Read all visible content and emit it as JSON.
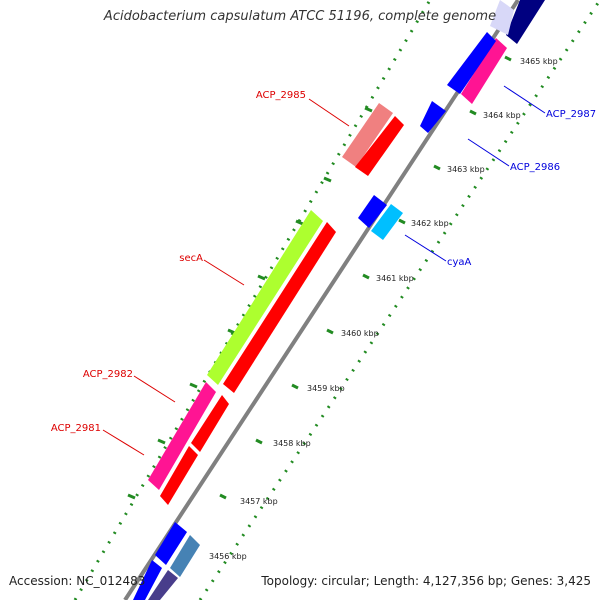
{
  "title": "Acidobacterium capsulatum ATCC 51196, complete genome",
  "footer": {
    "accession": "Accession: NC_012483",
    "summary": "Topology: circular; Length: 4,127,356 bp; Genes: 3,425"
  },
  "colors": {
    "backbone": "#808080",
    "tick_dots": "#228B22",
    "forward_label": "#DD0000",
    "reverse_label": "#0000DD"
  },
  "scale_ticks": [
    {
      "label": "3456 kbp"
    },
    {
      "label": "3457 kbp"
    },
    {
      "label": "3458 kbp"
    },
    {
      "label": "3459 kbp"
    },
    {
      "label": "3460 kbp"
    },
    {
      "label": "3461 kbp"
    },
    {
      "label": "3462 kbp"
    },
    {
      "label": "3463 kbp"
    },
    {
      "label": "3464 kbp"
    },
    {
      "label": "3465 kbp"
    }
  ],
  "gene_labels": {
    "acp_2985": "ACP_2985",
    "seca": "secA",
    "acp_2982": "ACP_2982",
    "acp_2981": "ACP_2981",
    "acp_2987": "ACP_2987",
    "acp_2986": "ACP_2986",
    "cyaa": "cyaA"
  },
  "genes": [
    {
      "name": "ACP_2985",
      "strand": "forward",
      "color": "#F08080",
      "cds_color": "#FF0000"
    },
    {
      "name": "secA",
      "strand": "forward",
      "color": "#ADFF2F",
      "cds_color": "#FF0000"
    },
    {
      "name": "ACP_2982",
      "strand": "forward",
      "color": "#FF1493",
      "cds_color": "#FF0000"
    },
    {
      "name": "ACP_2981",
      "strand": "forward",
      "color": "#FF1493",
      "cds_color": "#FF0000"
    },
    {
      "name": "ACP_2987",
      "strand": "reverse",
      "color": "#FF1493",
      "cds_color": "#0000FF"
    },
    {
      "name": "ACP_2986",
      "strand": "reverse",
      "color": "#0000FF",
      "cds_color": "#0000FF"
    },
    {
      "name": "cyaA",
      "strand": "reverse",
      "color": "#00BFFF",
      "cds_color": "#0000FF"
    }
  ]
}
